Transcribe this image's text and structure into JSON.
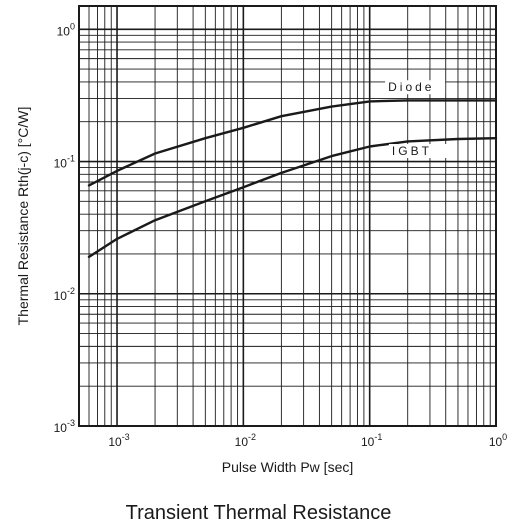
{
  "chart_data": {
    "type": "line",
    "title": "Transient Thermal Resistance",
    "xlabel": "Pulse Width Pw [sec]",
    "ylabel": "Thermal Resistance Rth(j-c) [°C/W]",
    "xscale": "log",
    "yscale": "log",
    "xlim": [
      0.0005,
      1
    ],
    "ylim": [
      0.001,
      1.5
    ],
    "grid": true,
    "x_ticks": [
      {
        "value": 0.001,
        "base": "10",
        "exp": "-3"
      },
      {
        "value": 0.01,
        "base": "10",
        "exp": "-2"
      },
      {
        "value": 0.1,
        "base": "10",
        "exp": "-1"
      },
      {
        "value": 1,
        "base": "10",
        "exp": "0"
      }
    ],
    "y_ticks": [
      {
        "value": 0.001,
        "base": "10",
        "exp": "-3"
      },
      {
        "value": 0.01,
        "base": "10",
        "exp": "-2"
      },
      {
        "value": 0.1,
        "base": "10",
        "exp": "-1"
      },
      {
        "value": 1,
        "base": "10",
        "exp": "0"
      }
    ],
    "series": [
      {
        "name": "Diode",
        "x": [
          0.0006,
          0.001,
          0.002,
          0.005,
          0.01,
          0.02,
          0.05,
          0.1,
          0.2,
          0.5,
          1
        ],
        "y": [
          0.066,
          0.085,
          0.115,
          0.15,
          0.18,
          0.22,
          0.26,
          0.285,
          0.29,
          0.29,
          0.29
        ]
      },
      {
        "name": "IGBT",
        "x": [
          0.0006,
          0.001,
          0.002,
          0.005,
          0.01,
          0.02,
          0.05,
          0.1,
          0.2,
          0.5,
          1
        ],
        "y": [
          0.019,
          0.026,
          0.036,
          0.05,
          0.064,
          0.082,
          0.11,
          0.13,
          0.142,
          0.148,
          0.15
        ]
      }
    ]
  }
}
